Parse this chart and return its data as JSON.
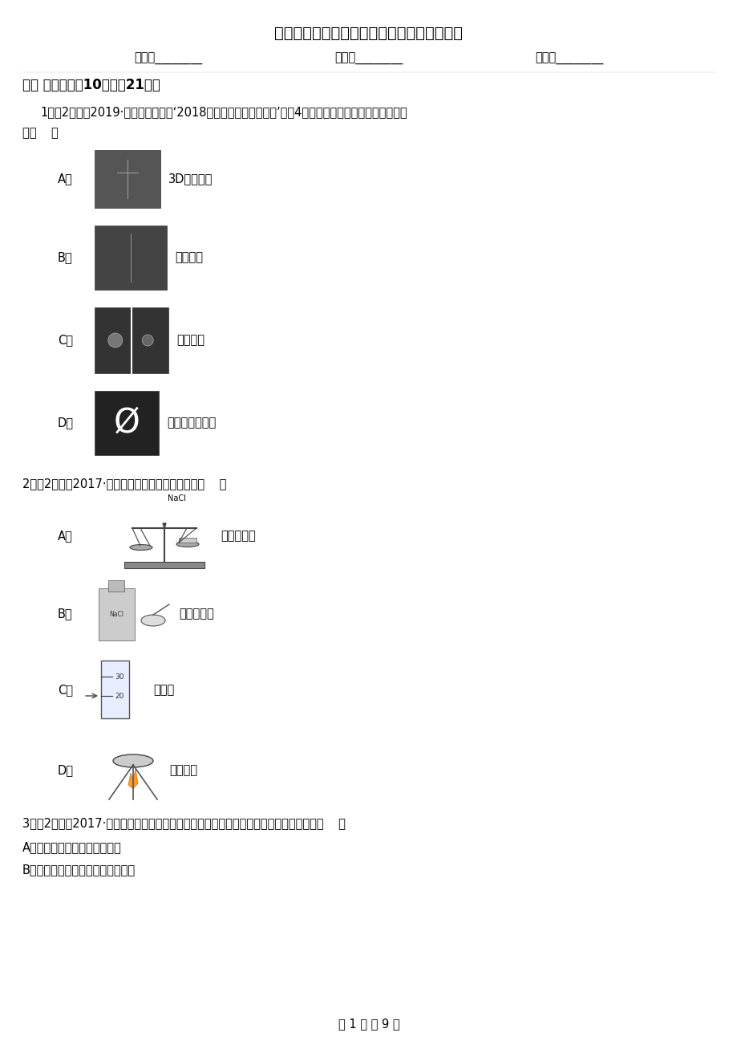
{
  "title": "菏泽市九年级下学期化学第一次模拟测试试卷",
  "name_field": "姓名：________",
  "class_field": "班级：________",
  "score_field": "成绩：________",
  "section1": "一、 选择题（入10题；入21分）",
  "q1_line1": "1．（2分）（2019·兰州模拟）下列‘2018年全球十大突破性技术’中的4项，其中与化学学科关系最密切的",
  "q1_line2": "是（    ）",
  "optA_label": "A．",
  "optA_text": "3D打印技术",
  "optB_label": "B．",
  "optB_text": "人工智能",
  "optC_label": "C．",
  "optC_text": "人造胚胎",
  "optD_label": "D．",
  "optD_text": "零碳天然气发电",
  "q2_text": "2．（2分）（2017·漯水模拟）下列操作正确的是（    ）",
  "q2A_label": "A．",
  "q2A_text": "称量氯化钓",
  "q2B_label": "B．",
  "q2B_text": "取用氯化钓",
  "q2C_label": "C．",
  "q2C_text": "量取水",
  "q2D_label": "D．",
  "q2D_text": "蝲发滤液",
  "q3_text": "3．（2分）（2017·长沙）水与人类的生产生活息息相关，下列有关水的说法不正确的是（    ）",
  "q3A_text": "A．活性炭可以吸附水中的异味",
  "q3B_text": "B．生活中常用煮永的方法软化硬水",
  "footer": "第 1 页 八 9 页",
  "bg_color": "#ffffff",
  "text_color": "#000000"
}
